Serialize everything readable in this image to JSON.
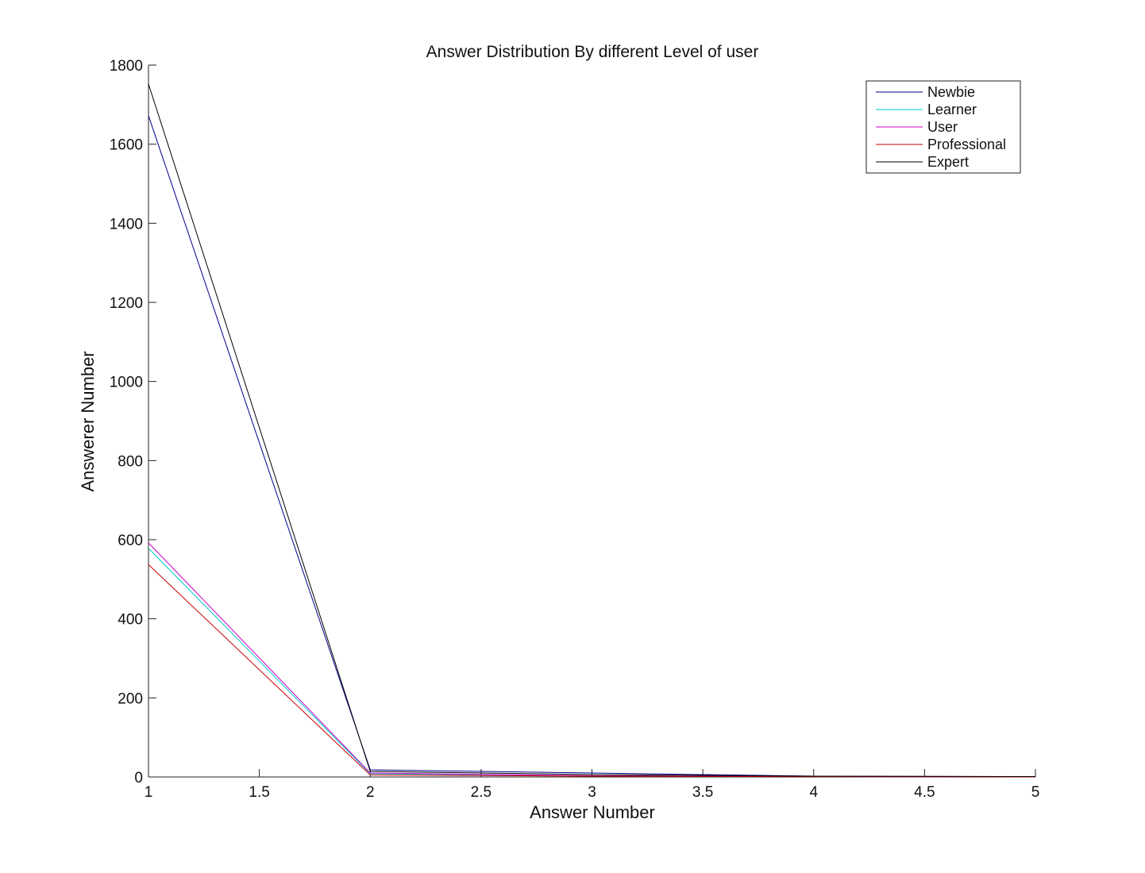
{
  "chart_data": {
    "type": "line",
    "title": "Answer Distribution By different Level of user",
    "xlabel": "Answer Number",
    "ylabel": "Answerer Number",
    "xlim": [
      1,
      5
    ],
    "ylim": [
      0,
      1800
    ],
    "x_ticks": [
      1,
      1.5,
      2,
      2.5,
      3,
      3.5,
      4,
      4.5,
      5
    ],
    "y_ticks": [
      0,
      200,
      400,
      600,
      800,
      1000,
      1200,
      1400,
      1600,
      1800
    ],
    "grid": false,
    "legend_position": "top-right",
    "x": [
      1,
      2,
      3,
      4,
      5
    ],
    "series": [
      {
        "name": "Newbie",
        "color": "#00008b",
        "values": [
          1672,
          18,
          10,
          2,
          1
        ]
      },
      {
        "name": "Learner",
        "color": "#00c8c8",
        "values": [
          578,
          8,
          3,
          1,
          0
        ]
      },
      {
        "name": "User",
        "color": "#c800c8",
        "values": [
          592,
          10,
          3,
          1,
          0
        ]
      },
      {
        "name": "Professional",
        "color": "#c80000",
        "values": [
          537,
          5,
          2,
          1,
          0
        ]
      },
      {
        "name": "Expert",
        "color": "#000000",
        "values": [
          1752,
          14,
          6,
          2,
          1
        ]
      }
    ]
  }
}
